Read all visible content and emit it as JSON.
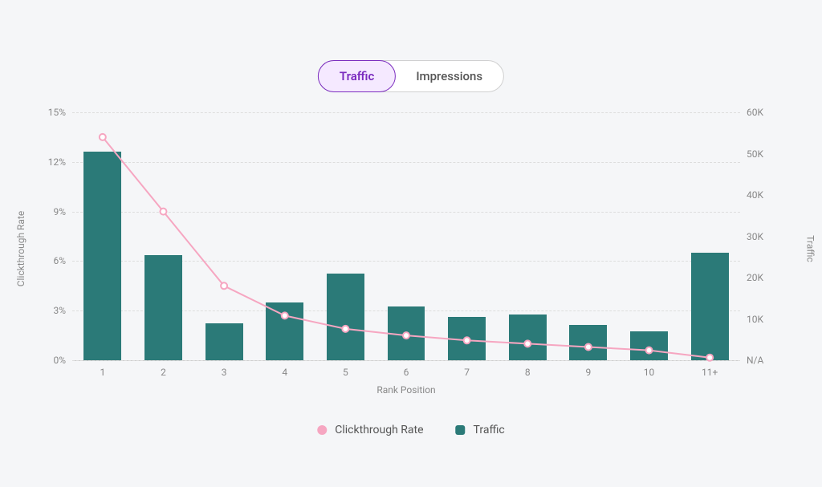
{
  "toggle": {
    "options": [
      "Traffic",
      "Impressions"
    ],
    "active_index": 0,
    "active_bg": "#f5e9ff",
    "active_color": "#7b2cbf",
    "active_border": "#7b2cbf",
    "inactive_bg": "#ffffff",
    "inactive_color": "#555555",
    "container_border": "#d0d0d0",
    "font_size": 15
  },
  "chart": {
    "type": "bar+line",
    "background_color": "#f5f6f8",
    "grid_color": "#dddddd",
    "axis_color": "#cccccc",
    "label_color": "#888888",
    "tick_fontsize": 12,
    "label_fontsize": 12,
    "x": {
      "label": "Rank Position",
      "categories": [
        "1",
        "2",
        "3",
        "4",
        "5",
        "6",
        "7",
        "8",
        "9",
        "10",
        "11+"
      ]
    },
    "y_left": {
      "label": "Clickthrough Rate",
      "min": 0,
      "max": 15,
      "ticks": [
        0,
        3,
        6,
        9,
        12,
        15
      ],
      "tick_labels": [
        "0%",
        "3%",
        "6%",
        "9%",
        "12%",
        "15%"
      ]
    },
    "y_right": {
      "label": "Traffic",
      "min": 0,
      "max": 60,
      "ticks": [
        0,
        10,
        20,
        30,
        40,
        50,
        60
      ],
      "tick_labels": [
        "N/A",
        "10K",
        "20K",
        "30K",
        "40K",
        "50K",
        "60K"
      ]
    },
    "bars": {
      "name": "Traffic",
      "color": "#2b7a78",
      "width_fraction": 0.62,
      "values": [
        50.5,
        25.5,
        9.0,
        14.0,
        21.0,
        13.0,
        10.5,
        11.0,
        8.5,
        7.0,
        26.0
      ]
    },
    "line": {
      "name": "Clickthrough Rate",
      "color": "#f6a6c1",
      "stroke_width": 2,
      "marker_radius": 4,
      "marker_fill": "#ffffff",
      "marker_stroke": "#f6a6c1",
      "values": [
        13.5,
        9.0,
        4.5,
        2.7,
        1.9,
        1.5,
        1.2,
        1.0,
        0.8,
        0.6,
        0.16
      ]
    }
  },
  "legend": {
    "items": [
      {
        "label": "Clickthrough Rate",
        "shape": "circle",
        "color": "#f6a6c1"
      },
      {
        "label": "Traffic",
        "shape": "bar",
        "color": "#2b7a78"
      }
    ],
    "font_size": 14,
    "text_color": "#555555"
  }
}
